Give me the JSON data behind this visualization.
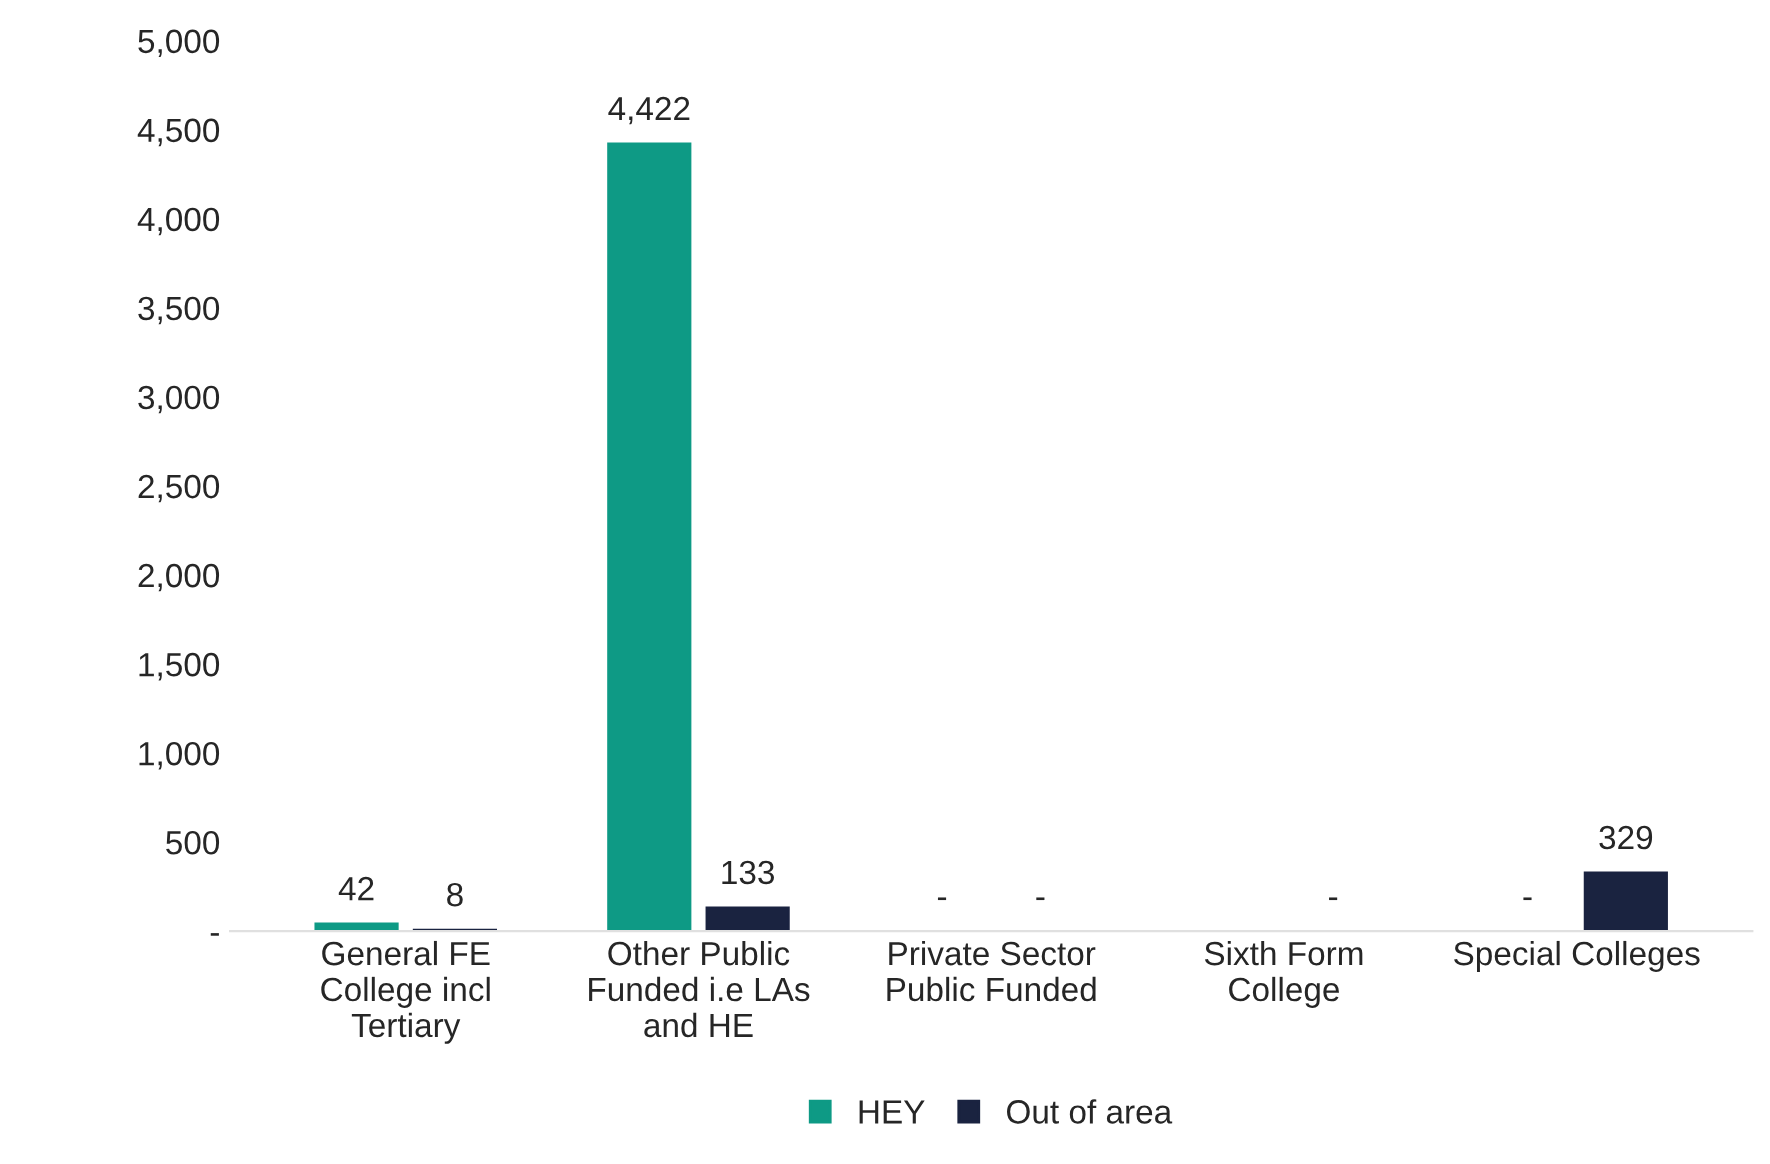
{
  "chart_data": {
    "type": "bar",
    "categories": [
      "General FE\nCollege incl\nTertiary",
      "Other Public\nFunded i.e LAs\nand HE",
      "Private Sector\nPublic Funded",
      "Sixth Form\nCollege",
      "Special Colleges"
    ],
    "series": [
      {
        "name": "HEY",
        "color": "#0e9a85",
        "values": [
          42,
          4422,
          0,
          0,
          0
        ],
        "value_labels": [
          "42",
          "4,422",
          "-",
          null,
          "-"
        ]
      },
      {
        "name": "Out of area",
        "color": "#1a2340",
        "values": [
          8,
          133,
          0,
          0,
          329
        ],
        "value_labels": [
          "8",
          "133",
          "-",
          "-",
          "329"
        ]
      }
    ],
    "ylim": [
      0,
      5000
    ],
    "yticks": [
      {
        "value": 0,
        "label": "-"
      },
      {
        "value": 500,
        "label": "500"
      },
      {
        "value": 1000,
        "label": "1,000"
      },
      {
        "value": 1500,
        "label": "1,500"
      },
      {
        "value": 2000,
        "label": "2,000"
      },
      {
        "value": 2500,
        "label": "2,500"
      },
      {
        "value": 3000,
        "label": "3,000"
      },
      {
        "value": 3500,
        "label": "3,500"
      },
      {
        "value": 4000,
        "label": "4,000"
      },
      {
        "value": 4500,
        "label": "4,500"
      },
      {
        "value": 5000,
        "label": "5,000"
      }
    ],
    "grid": false,
    "legend": "bottom"
  }
}
